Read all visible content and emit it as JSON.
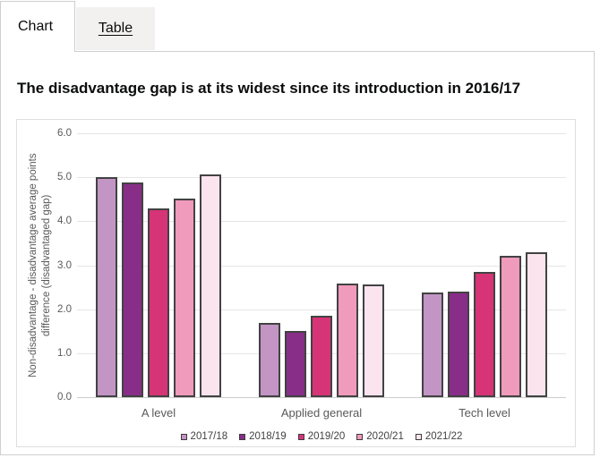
{
  "tabs": {
    "chart_label": "Chart",
    "table_label": "Table"
  },
  "heading": "The disadvantage gap is at its widest since its introduction in 2016/17",
  "chart_data": {
    "type": "bar",
    "title": "",
    "categories": [
      "A level",
      "Applied general",
      "Tech level"
    ],
    "series": [
      {
        "name": "2017/18",
        "color": "#c295c5",
        "values": [
          5.01,
          1.69,
          2.38
        ]
      },
      {
        "name": "2018/19",
        "color": "#882e89",
        "values": [
          4.88,
          1.51,
          2.41
        ]
      },
      {
        "name": "2019/20",
        "color": "#d63477",
        "values": [
          4.3,
          1.85,
          2.84
        ]
      },
      {
        "name": "2020/21",
        "color": "#f09abc",
        "values": [
          4.52,
          2.59,
          3.22
        ]
      },
      {
        "name": "2021/22",
        "color": "#fce4ef",
        "values": [
          5.07,
          2.56,
          3.3
        ]
      }
    ],
    "xlabel": "",
    "ylabel": "Non-disadvantage - disadvantage average points difference (disadvantaged gap)",
    "ylim": [
      0,
      6
    ],
    "ytick_step": 1,
    "ytick_decimals": 1,
    "grid": true,
    "legend_position": "bottom"
  },
  "colors": {
    "accent_border": "#cfcfcf",
    "bar_outline": "#424242",
    "axis_text": "#595959",
    "grid_line": "#e5e5e5"
  }
}
